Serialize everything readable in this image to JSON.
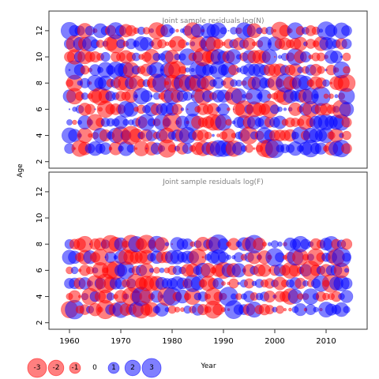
{
  "chart_data": [
    {
      "type": "scatter",
      "title": "Joint sample residuals log(N)",
      "ylabel": "Age",
      "xlim": [
        1956,
        2018
      ],
      "ylim": [
        1.5,
        13.5
      ],
      "yticks": [
        2,
        4,
        6,
        8,
        10,
        12
      ],
      "x": [
        1960,
        2014
      ],
      "y": [
        3,
        12
      ],
      "grid": false
    },
    {
      "type": "scatter",
      "title": "Joint sample residuals log(F)",
      "xlabel": "Year",
      "xlim": [
        1956,
        2018
      ],
      "ylim": [
        1.5,
        13.5
      ],
      "xticks": [
        1960,
        1970,
        1980,
        1990,
        2000,
        2010
      ],
      "yticks": [
        2,
        4,
        6,
        8,
        10,
        12
      ],
      "x": [
        1960,
        2014
      ],
      "y": [
        3,
        8
      ],
      "grid": false
    }
  ],
  "shared": {
    "ylabel": "Age",
    "xlabel": "Year"
  },
  "legend": {
    "placement": "bottom-left",
    "items": [
      {
        "label": "-3",
        "value": -3
      },
      {
        "label": "-2",
        "value": -2
      },
      {
        "label": "-1",
        "value": -1
      },
      {
        "label": "0",
        "value": 0
      },
      {
        "label": "1",
        "value": 1
      },
      {
        "label": "2",
        "value": 2
      },
      {
        "label": "3",
        "value": 3
      }
    ]
  },
  "colors": {
    "negative": "#ff0000",
    "positive": "#0000ff",
    "frame": "#333333",
    "title": "#808080"
  }
}
